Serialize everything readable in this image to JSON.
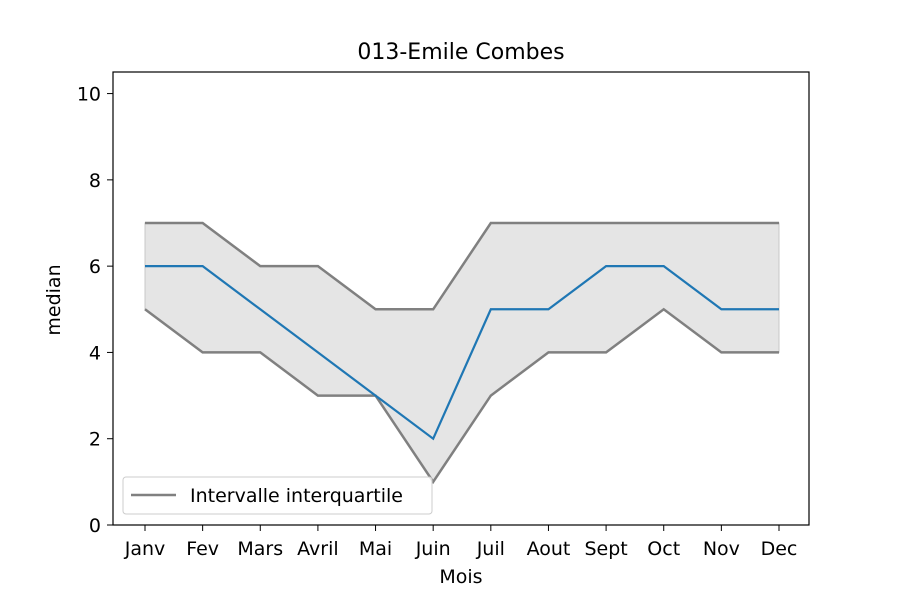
{
  "chart_data": {
    "type": "line",
    "title": "013-Emile Combes",
    "xlabel": "Mois",
    "ylabel": "median",
    "categories": [
      "Janv",
      "Fev",
      "Mars",
      "Avril",
      "Mai",
      "Juin",
      "Juil",
      "Aout",
      "Sept",
      "Oct",
      "Nov",
      "Dec"
    ],
    "ylim": [
      0,
      10.5
    ],
    "yticks": [
      0,
      2,
      4,
      6,
      8,
      10
    ],
    "series": [
      {
        "values": [
          6,
          6,
          5,
          4,
          3,
          2,
          5,
          5,
          6,
          6,
          5,
          5
        ]
      }
    ],
    "band": {
      "name": "Intervalle interquartile",
      "upper": [
        7,
        7,
        6,
        6,
        5,
        5,
        7,
        7,
        7,
        7,
        7,
        7
      ],
      "lower": [
        5,
        4,
        4,
        3,
        3,
        1,
        3,
        4,
        4,
        5,
        4,
        4
      ]
    },
    "legend": {
      "entries": [
        "Intervalle interquartile"
      ],
      "position": "lower-left"
    },
    "grid": false,
    "colors": {
      "median": "#1f77b4",
      "band_line": "#808080",
      "band_fill": "#e5e5e5",
      "axes": "#000000"
    }
  }
}
